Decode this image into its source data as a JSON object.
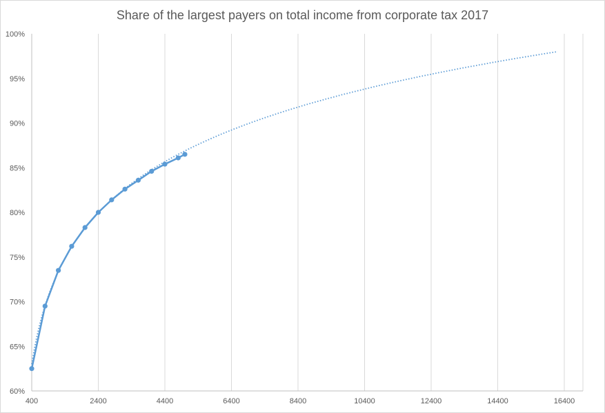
{
  "chart_data": {
    "type": "scatter",
    "title": "Share of the largest payers on total income from corporate tax 2017",
    "xlabel": "",
    "ylabel": "",
    "xlim": [
      400,
      16400
    ],
    "ylim": [
      0.6,
      1.0
    ],
    "xticks": [
      400,
      2400,
      4400,
      6400,
      8400,
      10400,
      12400,
      14400,
      16400
    ],
    "xtick_labels": [
      "400",
      "2400",
      "4400",
      "6400",
      "8400",
      "10400",
      "12400",
      "14400",
      "16400"
    ],
    "yticks": [
      0.6,
      0.65,
      0.7,
      0.75,
      0.8,
      0.85,
      0.9,
      0.95,
      1.0
    ],
    "ytick_labels": [
      "60%",
      "65%",
      "70%",
      "75%",
      "80%",
      "85%",
      "90%",
      "95%",
      "100%"
    ],
    "grid": "vertical",
    "legend": "none",
    "series": [
      {
        "style": "solid line with markers",
        "color": "#5b9bd5",
        "x": [
          400,
          800,
          1200,
          1600,
          2000,
          2400,
          2800,
          3200,
          3600,
          4000,
          4400,
          4800,
          5000
        ],
        "y": [
          0.625,
          0.695,
          0.735,
          0.762,
          0.783,
          0.8,
          0.814,
          0.826,
          0.836,
          0.846,
          0.854,
          0.861,
          0.865
        ]
      },
      {
        "style": "dotted logarithmic trendline",
        "color": "#5b9bd5",
        "x_range": [
          400,
          16200
        ],
        "y_at_start": 0.63,
        "y_at_end": 0.98
      }
    ]
  }
}
